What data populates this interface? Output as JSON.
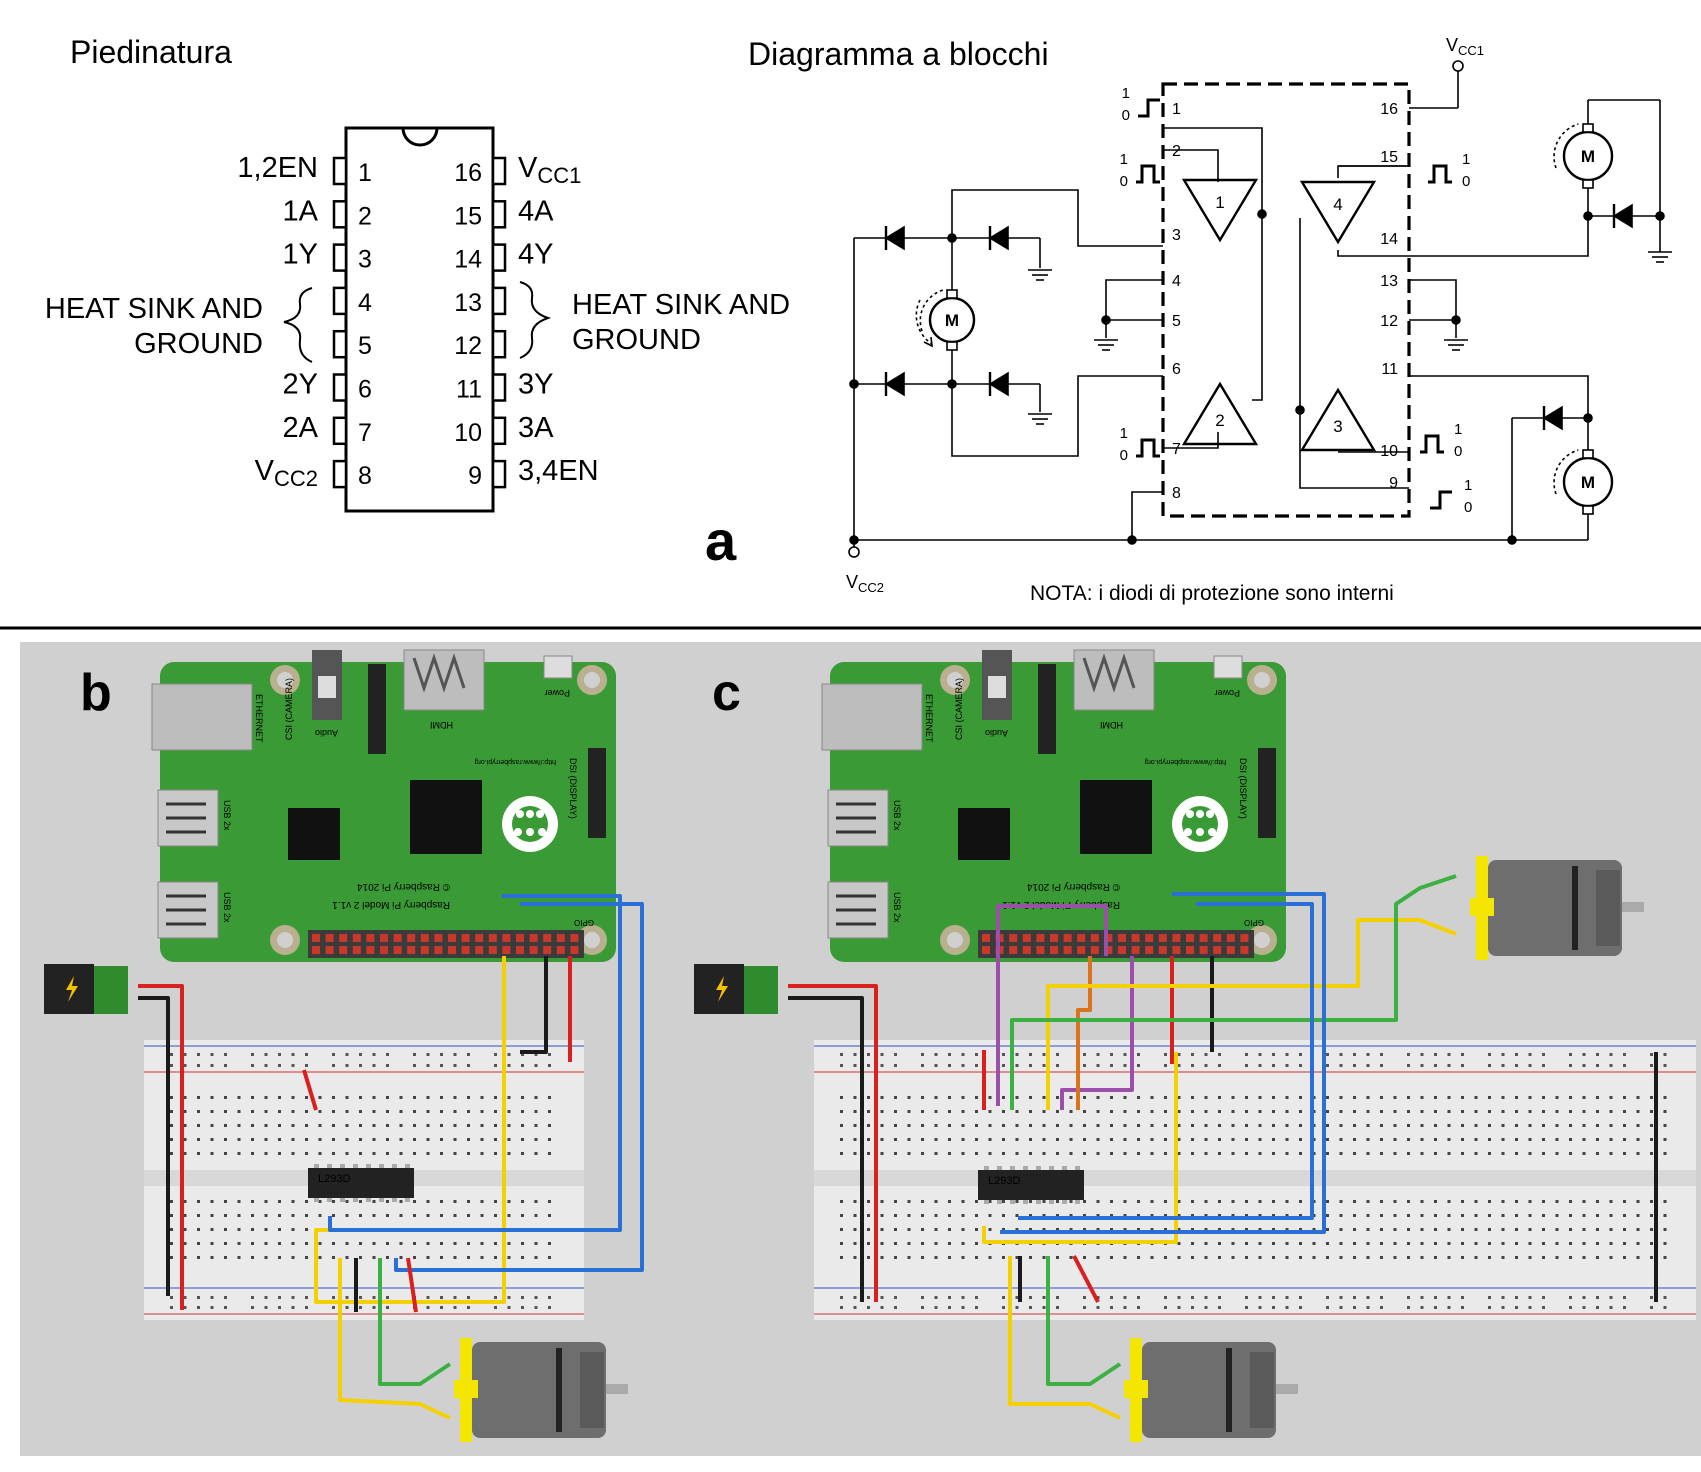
{
  "panel_a": {
    "pinout_title": "Piedinatura",
    "block_title": "Diagramma a blocchi",
    "label": "a",
    "left_pins": [
      {
        "num": "1",
        "name": "1,2EN",
        "sub": ""
      },
      {
        "num": "2",
        "name": "1A",
        "sub": ""
      },
      {
        "num": "3",
        "name": "1Y",
        "sub": ""
      },
      {
        "num": "4",
        "name": "",
        "sub": ""
      },
      {
        "num": "5",
        "name": "",
        "sub": ""
      },
      {
        "num": "6",
        "name": "2Y",
        "sub": ""
      },
      {
        "num": "7",
        "name": "2A",
        "sub": ""
      },
      {
        "num": "8",
        "name": "V",
        "sub": "CC2"
      }
    ],
    "right_pins": [
      {
        "num": "16",
        "name": "V",
        "sub": "CC1"
      },
      {
        "num": "15",
        "name": "4A",
        "sub": ""
      },
      {
        "num": "14",
        "name": "4Y",
        "sub": ""
      },
      {
        "num": "13",
        "name": "",
        "sub": ""
      },
      {
        "num": "12",
        "name": "",
        "sub": ""
      },
      {
        "num": "11",
        "name": "3Y",
        "sub": ""
      },
      {
        "num": "10",
        "name": "3A",
        "sub": ""
      },
      {
        "num": "9",
        "name": "3,4EN",
        "sub": ""
      }
    ],
    "heat_sink_line1": "HEAT SINK AND",
    "heat_sink_line2": "GROUND",
    "vcc1": "V",
    "vcc1_sub": "CC1",
    "vcc2": "V",
    "vcc2_sub": "CC2",
    "motor_label": "M",
    "note": "NOTA: i diodi di protezione sono interni",
    "block_pins_left": [
      "1",
      "2",
      "3",
      "4",
      "5",
      "6",
      "7",
      "8"
    ],
    "block_pins_right": [
      "16",
      "15",
      "14",
      "13",
      "12",
      "11",
      "10",
      "9"
    ],
    "buffers": [
      "1",
      "2",
      "3",
      "4"
    ],
    "logic_hi": "1",
    "logic_lo": "0"
  },
  "panel_b": {
    "label": "b"
  },
  "panel_c": {
    "label": "c"
  },
  "board": {
    "ethernet": "ETHERNET",
    "usb": "USB 2x",
    "audio": "Audio",
    "csi": "CSI (CAMERA)",
    "hdmi": "HDMI",
    "power": "Power",
    "dsi": "DSI (DISPLAY)",
    "url": "http://www.raspberrypi.org",
    "model": "Raspberry Pi Model 2 v1.1",
    "copyright": "© Raspberry Pi 2014",
    "gpio": "GPIO"
  },
  "chip": "L293D",
  "colors": {
    "pcb": "#3a9a35",
    "background_gray": "#d0d0d0",
    "wire_red": "#d8201e",
    "wire_black": "#1a1a1a",
    "wire_yellow": "#f5d000",
    "wire_blue": "#2a6fd6",
    "wire_green": "#3cb043",
    "wire_purple": "#9b4fa8",
    "wire_orange": "#d9731c"
  }
}
